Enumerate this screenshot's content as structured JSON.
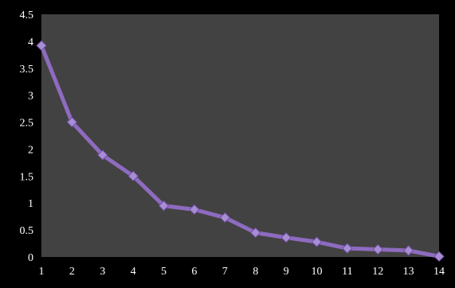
{
  "chart_data": {
    "type": "line",
    "x": [
      1,
      2,
      3,
      4,
      5,
      6,
      7,
      8,
      9,
      10,
      11,
      12,
      13,
      14
    ],
    "series": [
      {
        "values": [
          3.92,
          2.5,
          1.89,
          1.5,
          0.95,
          0.88,
          0.73,
          0.45,
          0.36,
          0.28,
          0.16,
          0.14,
          0.12,
          0.01
        ],
        "color": "#8e6bc0",
        "marker": "diamond"
      }
    ],
    "ylim": [
      0,
      4.5
    ],
    "yticks": [
      "0",
      "0.5",
      "1",
      "1.5",
      "2",
      "2.5",
      "3",
      "3.5",
      "4",
      "4.5"
    ],
    "xticks": [
      "1",
      "2",
      "3",
      "4",
      "5",
      "6",
      "7",
      "8",
      "9",
      "10",
      "11",
      "12",
      "13",
      "14"
    ],
    "grid": false,
    "legend": "none",
    "colors": {
      "background": "#000000",
      "plot_area": "#424242",
      "line": "#8e6bc0",
      "marker": "#a98dd4",
      "text": "#ffffff"
    }
  }
}
